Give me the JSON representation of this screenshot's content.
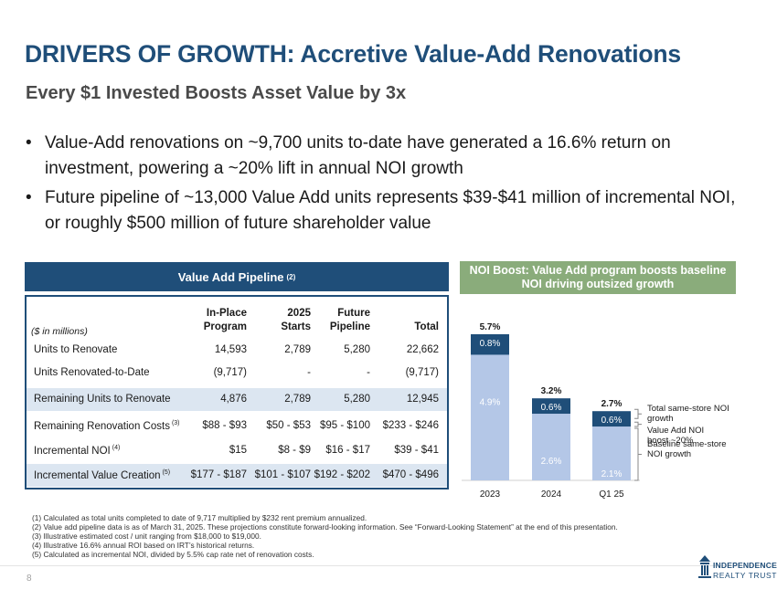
{
  "title": "DRIVERS OF GROWTH: Accretive Value-Add Renovations",
  "subtitle": "Every $1 Invested Boosts Asset Value by 3x",
  "bullets": [
    "Value-Add renovations on ~9,700 units to-date have generated a 16.6% return on investment, powering a ~20% lift in annual NOI growth",
    "Future pipeline of ~13,000 Value Add units represents $39-$41 million of incremental NOI, or roughly $500 million of future shareholder value"
  ],
  "bullet_symbol": "•",
  "pipeline": {
    "header": "Value Add Pipeline",
    "header_note": "(2)",
    "units_note": "($ in millions)",
    "columns": [
      {
        "line1": "In-Place",
        "line2": "Program"
      },
      {
        "line1": "2025",
        "line2": "Starts"
      },
      {
        "line1": "Future",
        "line2": "Pipeline"
      },
      {
        "line1": "",
        "line2": "Total"
      }
    ],
    "rows": [
      {
        "label": "Units to Renovate",
        "note": "",
        "values": [
          "14,593",
          "2,789",
          "5,280",
          "22,662"
        ],
        "shaded": false
      },
      {
        "label": "Units Renovated-to-Date",
        "note": "",
        "values": [
          "(9,717)",
          "-",
          "-",
          "(9,717)"
        ],
        "shaded": false
      },
      {
        "label": "Remaining Units to Renovate",
        "note": "",
        "values": [
          "4,876",
          "2,789",
          "5,280",
          "12,945"
        ],
        "shaded": true
      },
      {
        "label": "Remaining Renovation Costs",
        "note": "(3)",
        "values": [
          "$88 - $93",
          "$50 - $53",
          "$95 - $100",
          "$233 - $246"
        ],
        "shaded": false
      },
      {
        "label": "Incremental NOI",
        "note": "(4)",
        "values": [
          "$15",
          "$8 - $9",
          "$16 - $17",
          "$39 - $41"
        ],
        "shaded": false
      },
      {
        "label": "Incremental Value Creation",
        "note": "(5)",
        "values": [
          "$177 - $187",
          "$101 - $107",
          "$192 - $202",
          "$470 - $496"
        ],
        "shaded": true
      }
    ]
  },
  "chart_header": {
    "line1": "NOI Boost: Value Add program boosts baseline",
    "line2": "NOI driving outsized growth"
  },
  "chart_data": {
    "type": "bar",
    "stacked": true,
    "categories": [
      "2023",
      "2024",
      "Q1 25"
    ],
    "series": [
      {
        "name": "Baseline same-store NOI growth",
        "values": [
          4.9,
          2.6,
          2.1
        ],
        "labels": [
          "4.9%",
          "2.6%",
          "2.1%"
        ],
        "color": "#b4c7e7"
      },
      {
        "name": "Value Add NOI boost ~20%",
        "values": [
          0.8,
          0.6,
          0.6
        ],
        "labels": [
          "0.8%",
          "0.6%",
          "0.6%"
        ],
        "color": "#1f4e79"
      }
    ],
    "totals": [
      "5.7%",
      "3.2%",
      "2.7%"
    ],
    "total_values": [
      5.7,
      3.2,
      2.7
    ],
    "annotations": [
      "Total same-store NOI growth",
      "Value Add NOI boost ~20%",
      "Baseline same-store NOI growth"
    ],
    "ylim": [
      0,
      5.7
    ],
    "xlabel": "",
    "ylabel": ""
  },
  "footnotes": [
    "(1)  Calculated as total units completed to date of 9,717 multiplied by $232 rent premium annualized.",
    "(2)  Value add pipeline data is as of March 31, 2025. These projections constitute forward-looking information. See “Forward-Looking Statement” at the end of this presentation.",
    "(3)  Illustrative estimated cost / unit ranging from $18,000 to $19,000.",
    "(4)  Illustrative 16.6% annual ROI based on IRT’s historical returns.",
    "(5)  Calculated as incremental NOI, divided by 5.5% cap rate net of renovation costs."
  ],
  "page_number": "8",
  "logo": {
    "line1": "INDEPENDENCE",
    "line2": "REALTY TRUST"
  },
  "colors": {
    "navy": "#1f4e79",
    "light_blue": "#b4c7e7",
    "green": "#8aac7b",
    "shade": "#dce6f1"
  }
}
